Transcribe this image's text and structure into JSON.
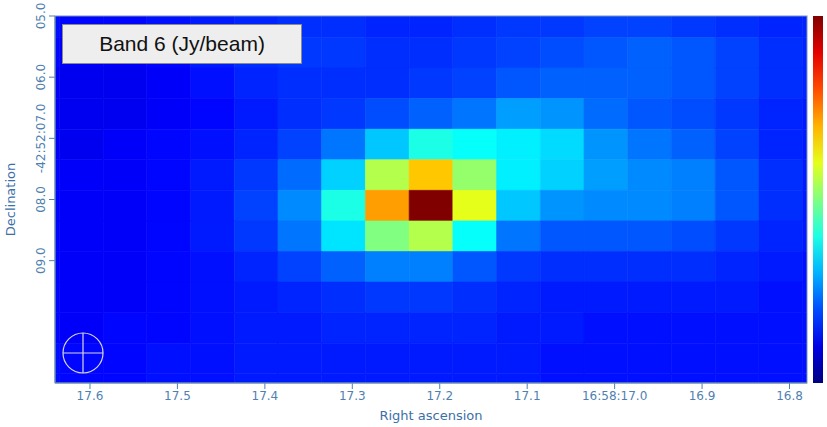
{
  "chart_data": {
    "type": "heatmap",
    "title": "Band 6 (Jy/beam)",
    "x_label": "Right ascension",
    "y_label": "Declination",
    "xlim": [
      16.78,
      17.64
    ],
    "ylim": [
      5,
      11
    ],
    "xticks": [
      17.6,
      17.5,
      17.4,
      17.3,
      17.2,
      17.1,
      {
        "value": 17,
        "label": "16:58:17.0"
      },
      16.9,
      16.8
    ],
    "yticks": [
      {
        "value": 5,
        "label": "05.0"
      },
      {
        "value": 6,
        "label": "06.0"
      },
      {
        "value": 7,
        "label": "-42:52:07.0"
      },
      {
        "value": 8,
        "label": "08.0"
      },
      {
        "value": 9,
        "label": "09.0"
      }
    ],
    "x": [
      17.66,
      17.61,
      17.56,
      17.51,
      17.46,
      17.41,
      17.36,
      17.31,
      17.26,
      17.21,
      17.16,
      17.11,
      17.06,
      17.01,
      16.96,
      16.91,
      16.86,
      16.81,
      16.76
    ],
    "y": [
      5.1,
      5.6,
      6.1,
      6.6,
      7.1,
      7.6,
      8.1,
      8.6,
      9.1,
      9.6,
      10.1,
      10.6,
      11.1
    ],
    "cells": [
      [
        0.14,
        0.13,
        0.13,
        0.14,
        0.15,
        0.16,
        0.17,
        0.17,
        0.16,
        0.16,
        0.17,
        0.18,
        0.18,
        0.19,
        0.19,
        0.18,
        0.17,
        0.16,
        0.16
      ],
      [
        0.13,
        0.12,
        0.12,
        0.13,
        0.15,
        0.17,
        0.18,
        0.18,
        0.17,
        0.17,
        0.18,
        0.19,
        0.2,
        0.21,
        0.22,
        0.21,
        0.19,
        0.17,
        0.16
      ],
      [
        0.12,
        0.11,
        0.11,
        0.12,
        0.14,
        0.16,
        0.17,
        0.17,
        0.17,
        0.18,
        0.19,
        0.21,
        0.22,
        0.22,
        0.22,
        0.21,
        0.19,
        0.17,
        0.16
      ],
      [
        0.12,
        0.11,
        0.11,
        0.12,
        0.13,
        0.15,
        0.17,
        0.18,
        0.2,
        0.22,
        0.24,
        0.28,
        0.27,
        0.23,
        0.21,
        0.2,
        0.18,
        0.16,
        0.15
      ],
      [
        0.12,
        0.11,
        0.12,
        0.13,
        0.14,
        0.16,
        0.19,
        0.24,
        0.32,
        0.4,
        0.38,
        0.36,
        0.34,
        0.27,
        0.24,
        0.22,
        0.19,
        0.16,
        0.15
      ],
      [
        0.13,
        0.12,
        0.12,
        0.13,
        0.15,
        0.18,
        0.23,
        0.33,
        0.55,
        0.68,
        0.52,
        0.36,
        0.33,
        0.28,
        0.26,
        0.25,
        0.21,
        0.17,
        0.15
      ],
      [
        0.13,
        0.12,
        0.12,
        0.13,
        0.15,
        0.19,
        0.26,
        0.4,
        0.72,
        1.0,
        0.6,
        0.32,
        0.27,
        0.26,
        0.26,
        0.25,
        0.21,
        0.17,
        0.15
      ],
      [
        0.13,
        0.12,
        0.12,
        0.13,
        0.15,
        0.18,
        0.24,
        0.35,
        0.5,
        0.55,
        0.38,
        0.24,
        0.21,
        0.21,
        0.21,
        0.2,
        0.18,
        0.16,
        0.15
      ],
      [
        0.13,
        0.12,
        0.12,
        0.13,
        0.14,
        0.16,
        0.19,
        0.22,
        0.25,
        0.25,
        0.21,
        0.18,
        0.17,
        0.17,
        0.17,
        0.17,
        0.16,
        0.15,
        0.14
      ],
      [
        0.13,
        0.12,
        0.12,
        0.13,
        0.14,
        0.15,
        0.16,
        0.17,
        0.18,
        0.18,
        0.17,
        0.16,
        0.15,
        0.15,
        0.15,
        0.15,
        0.15,
        0.14,
        0.14
      ],
      [
        0.13,
        0.12,
        0.13,
        0.13,
        0.14,
        0.15,
        0.15,
        0.16,
        0.16,
        0.16,
        0.16,
        0.15,
        0.15,
        0.14,
        0.14,
        0.14,
        0.14,
        0.14,
        0.14
      ],
      [
        0.14,
        0.13,
        0.13,
        0.14,
        0.14,
        0.15,
        0.15,
        0.15,
        0.15,
        0.15,
        0.15,
        0.15,
        0.14,
        0.14,
        0.14,
        0.14,
        0.14,
        0.14,
        0.14
      ],
      [
        0.14,
        0.13,
        0.13,
        0.14,
        0.14,
        0.15,
        0.15,
        0.15,
        0.15,
        0.15,
        0.15,
        0.15,
        0.14,
        0.14,
        0.14,
        0.14,
        0.14,
        0.14,
        0.14
      ]
    ],
    "color_range": [
      0,
      1
    ]
  }
}
